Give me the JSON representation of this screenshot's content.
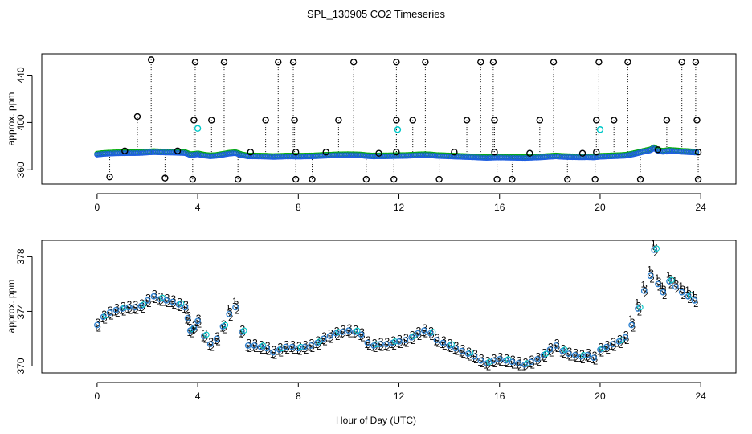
{
  "figure": {
    "title": "SPL_130905  CO2 Timeseries",
    "xlabel": "Hour of Day (UTC)"
  },
  "chart_data": [
    {
      "type": "scatter",
      "name": "top-panel",
      "ylabel": "approx. ppm",
      "xlim": [
        -2.2,
        25.4
      ],
      "ylim": [
        348,
        458
      ],
      "xticks": [
        0,
        4,
        8,
        12,
        16,
        20,
        24
      ],
      "yticks": [
        360,
        400,
        440
      ],
      "spike_base": 373,
      "spikes_high": [
        {
          "x": 2.15,
          "y": 453
        },
        {
          "x": 3.9,
          "y": 451
        },
        {
          "x": 5.05,
          "y": 451
        },
        {
          "x": 7.2,
          "y": 451
        },
        {
          "x": 7.8,
          "y": 451
        },
        {
          "x": 10.2,
          "y": 451
        },
        {
          "x": 11.9,
          "y": 451
        },
        {
          "x": 13.05,
          "y": 451
        },
        {
          "x": 15.25,
          "y": 451
        },
        {
          "x": 15.75,
          "y": 451
        },
        {
          "x": 18.15,
          "y": 451
        },
        {
          "x": 19.95,
          "y": 451
        },
        {
          "x": 21.1,
          "y": 451
        },
        {
          "x": 23.25,
          "y": 451
        },
        {
          "x": 23.8,
          "y": 451
        },
        {
          "x": 1.6,
          "y": 405
        },
        {
          "x": 3.85,
          "y": 402
        },
        {
          "x": 4.55,
          "y": 402
        },
        {
          "x": 6.7,
          "y": 402
        },
        {
          "x": 7.85,
          "y": 402
        },
        {
          "x": 9.6,
          "y": 402
        },
        {
          "x": 11.9,
          "y": 402
        },
        {
          "x": 12.55,
          "y": 402
        },
        {
          "x": 14.7,
          "y": 402
        },
        {
          "x": 15.8,
          "y": 402
        },
        {
          "x": 17.6,
          "y": 402
        },
        {
          "x": 19.85,
          "y": 402
        },
        {
          "x": 20.55,
          "y": 402
        },
        {
          "x": 22.65,
          "y": 402
        },
        {
          "x": 23.85,
          "y": 402
        }
      ],
      "spikes_low": [
        {
          "x": 0.5,
          "y": 354
        },
        {
          "x": 2.7,
          "y": 353
        },
        {
          "x": 3.8,
          "y": 352
        },
        {
          "x": 5.6,
          "y": 352
        },
        {
          "x": 7.9,
          "y": 352
        },
        {
          "x": 8.55,
          "y": 352
        },
        {
          "x": 10.7,
          "y": 352
        },
        {
          "x": 11.8,
          "y": 352
        },
        {
          "x": 13.6,
          "y": 352
        },
        {
          "x": 15.9,
          "y": 352
        },
        {
          "x": 16.5,
          "y": 352
        },
        {
          "x": 18.7,
          "y": 352
        },
        {
          "x": 19.8,
          "y": 352
        },
        {
          "x": 21.6,
          "y": 352
        },
        {
          "x": 23.9,
          "y": 352
        }
      ],
      "cyan_points": [
        {
          "x": 4.0,
          "y": 395
        },
        {
          "x": 11.95,
          "y": 394
        },
        {
          "x": 20.0,
          "y": 394
        }
      ],
      "black_mid_points": [
        {
          "x": 1.1,
          "y": 376
        },
        {
          "x": 3.2,
          "y": 376
        },
        {
          "x": 6.1,
          "y": 375
        },
        {
          "x": 7.9,
          "y": 375
        },
        {
          "x": 9.1,
          "y": 375
        },
        {
          "x": 11.2,
          "y": 374
        },
        {
          "x": 11.9,
          "y": 375
        },
        {
          "x": 14.2,
          "y": 375
        },
        {
          "x": 15.8,
          "y": 375
        },
        {
          "x": 17.2,
          "y": 374
        },
        {
          "x": 19.3,
          "y": 374
        },
        {
          "x": 19.85,
          "y": 375
        },
        {
          "x": 22.3,
          "y": 377
        },
        {
          "x": 23.9,
          "y": 375
        }
      ]
    },
    {
      "type": "scatter",
      "name": "bottom-panel",
      "ylabel": "approx. ppm",
      "xlim": [
        -2.2,
        25.4
      ],
      "ylim": [
        369.5,
        379.2
      ],
      "xticks": [
        0,
        4,
        8,
        12,
        16,
        20,
        24
      ],
      "yticks": [
        370,
        374,
        378
      ],
      "marker_labels": {
        "series1": "1",
        "series2": "2",
        "series3": "3"
      },
      "series_colors": {
        "series1": "#ff0000",
        "series2": "#00b000",
        "series3": "#0000ff",
        "circle": "#2a7fcf",
        "circle_alt": "#00c8c8"
      },
      "x": [
        0,
        0.25,
        0.5,
        0.75,
        1.0,
        1.25,
        1.5,
        1.75,
        2.0,
        2.25,
        2.5,
        2.75,
        3.0,
        3.25,
        3.5,
        3.6,
        3.7,
        3.85,
        4.0,
        4.25,
        4.5,
        4.75,
        5.0,
        5.25,
        5.5,
        5.75,
        6.0,
        6.25,
        6.5,
        6.75,
        7.0,
        7.25,
        7.5,
        7.75,
        8.0,
        8.25,
        8.5,
        8.75,
        9.0,
        9.25,
        9.5,
        9.75,
        10.0,
        10.25,
        10.5,
        10.75,
        11.0,
        11.25,
        11.5,
        11.75,
        12.0,
        12.25,
        12.5,
        12.75,
        13.0,
        13.25,
        13.5,
        13.75,
        14.0,
        14.25,
        14.5,
        14.75,
        15.0,
        15.25,
        15.5,
        15.75,
        16.0,
        16.25,
        16.5,
        16.75,
        17.0,
        17.25,
        17.5,
        17.75,
        18.0,
        18.25,
        18.5,
        18.75,
        19.0,
        19.25,
        19.5,
        19.75,
        20.0,
        20.25,
        20.5,
        20.75,
        21.0,
        21.25,
        21.5,
        21.75,
        22.0,
        22.15,
        22.3,
        22.5,
        22.75,
        23.0,
        23.25,
        23.5,
        23.75
      ],
      "y": [
        373.0,
        373.6,
        373.9,
        374.1,
        374.2,
        374.3,
        374.3,
        374.4,
        374.8,
        375.1,
        374.9,
        374.8,
        374.7,
        374.5,
        374.3,
        373.5,
        372.6,
        372.8,
        373.3,
        372.2,
        371.6,
        372.0,
        372.9,
        373.8,
        374.3,
        372.5,
        371.5,
        371.5,
        371.4,
        371.3,
        371.0,
        371.2,
        371.4,
        371.4,
        371.3,
        371.4,
        371.5,
        371.7,
        372.0,
        372.2,
        372.4,
        372.5,
        372.6,
        372.5,
        372.3,
        371.7,
        371.5,
        371.6,
        371.6,
        371.7,
        371.8,
        371.9,
        372.1,
        372.4,
        372.6,
        372.4,
        371.9,
        371.7,
        371.5,
        371.3,
        371.1,
        370.9,
        370.7,
        370.4,
        370.2,
        370.4,
        370.5,
        370.4,
        370.3,
        370.2,
        370.1,
        370.3,
        370.5,
        370.8,
        371.2,
        371.5,
        371.1,
        370.9,
        370.8,
        370.7,
        370.8,
        370.6,
        371.2,
        371.4,
        371.6,
        371.8,
        372.1,
        373.0,
        374.2,
        375.5,
        376.6,
        378.5,
        376.0,
        375.4,
        376.2,
        375.8,
        375.4,
        375.1,
        374.8
      ]
    }
  ]
}
